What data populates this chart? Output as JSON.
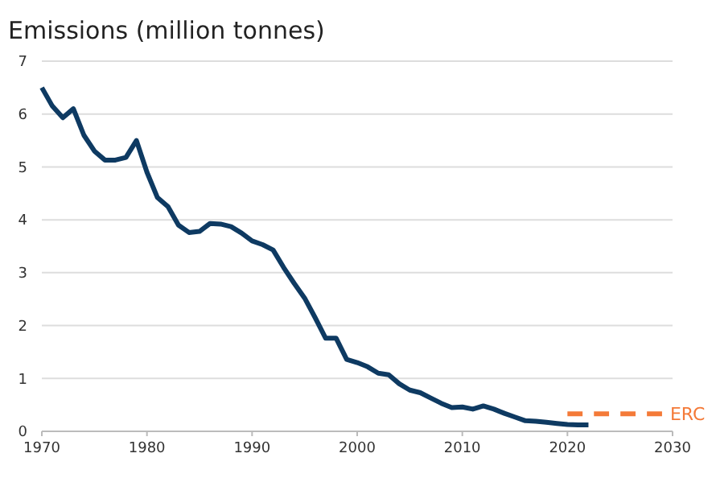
{
  "chart_data": {
    "type": "line",
    "title": "Emissions (million tonnes)",
    "xlim": [
      1970,
      2030
    ],
    "xticks": [
      1970,
      1980,
      1990,
      2000,
      2010,
      2020,
      2030
    ],
    "ylim": [
      0,
      7
    ],
    "yticks": [
      0,
      1,
      2,
      3,
      4,
      5,
      6,
      7
    ],
    "grid": "y",
    "legend": false,
    "series": [
      {
        "color": "#0e3a62",
        "line_style": "solid",
        "x": [
          1970,
          1971,
          1972,
          1973,
          1974,
          1975,
          1976,
          1977,
          1978,
          1979,
          1980,
          1981,
          1982,
          1983,
          1984,
          1985,
          1986,
          1987,
          1988,
          1989,
          1990,
          1991,
          1992,
          1993,
          1994,
          1995,
          1996,
          1997,
          1998,
          1999,
          2000,
          2001,
          2002,
          2003,
          2004,
          2005,
          2006,
          2007,
          2008,
          2009,
          2010,
          2011,
          2012,
          2013,
          2014,
          2015,
          2016,
          2017,
          2018,
          2019,
          2020,
          2021,
          2022
        ],
        "values": [
          6.5,
          6.15,
          5.93,
          6.1,
          5.6,
          5.3,
          5.13,
          5.13,
          5.18,
          5.5,
          4.9,
          4.42,
          4.25,
          3.9,
          3.76,
          3.78,
          3.93,
          3.92,
          3.87,
          3.75,
          3.6,
          3.53,
          3.43,
          3.1,
          2.8,
          2.52,
          2.15,
          1.76,
          1.76,
          1.36,
          1.3,
          1.22,
          1.1,
          1.07,
          0.9,
          0.78,
          0.73,
          0.63,
          0.53,
          0.45,
          0.46,
          0.42,
          0.48,
          0.42,
          0.34,
          0.27,
          0.2,
          0.19,
          0.17,
          0.15,
          0.13,
          0.12,
          0.12
        ]
      },
      {
        "name": "ERC",
        "color": "#f47a38",
        "line_style": "dashed",
        "x": [
          2020,
          2029
        ],
        "values": [
          0.33,
          0.33
        ]
      }
    ]
  }
}
